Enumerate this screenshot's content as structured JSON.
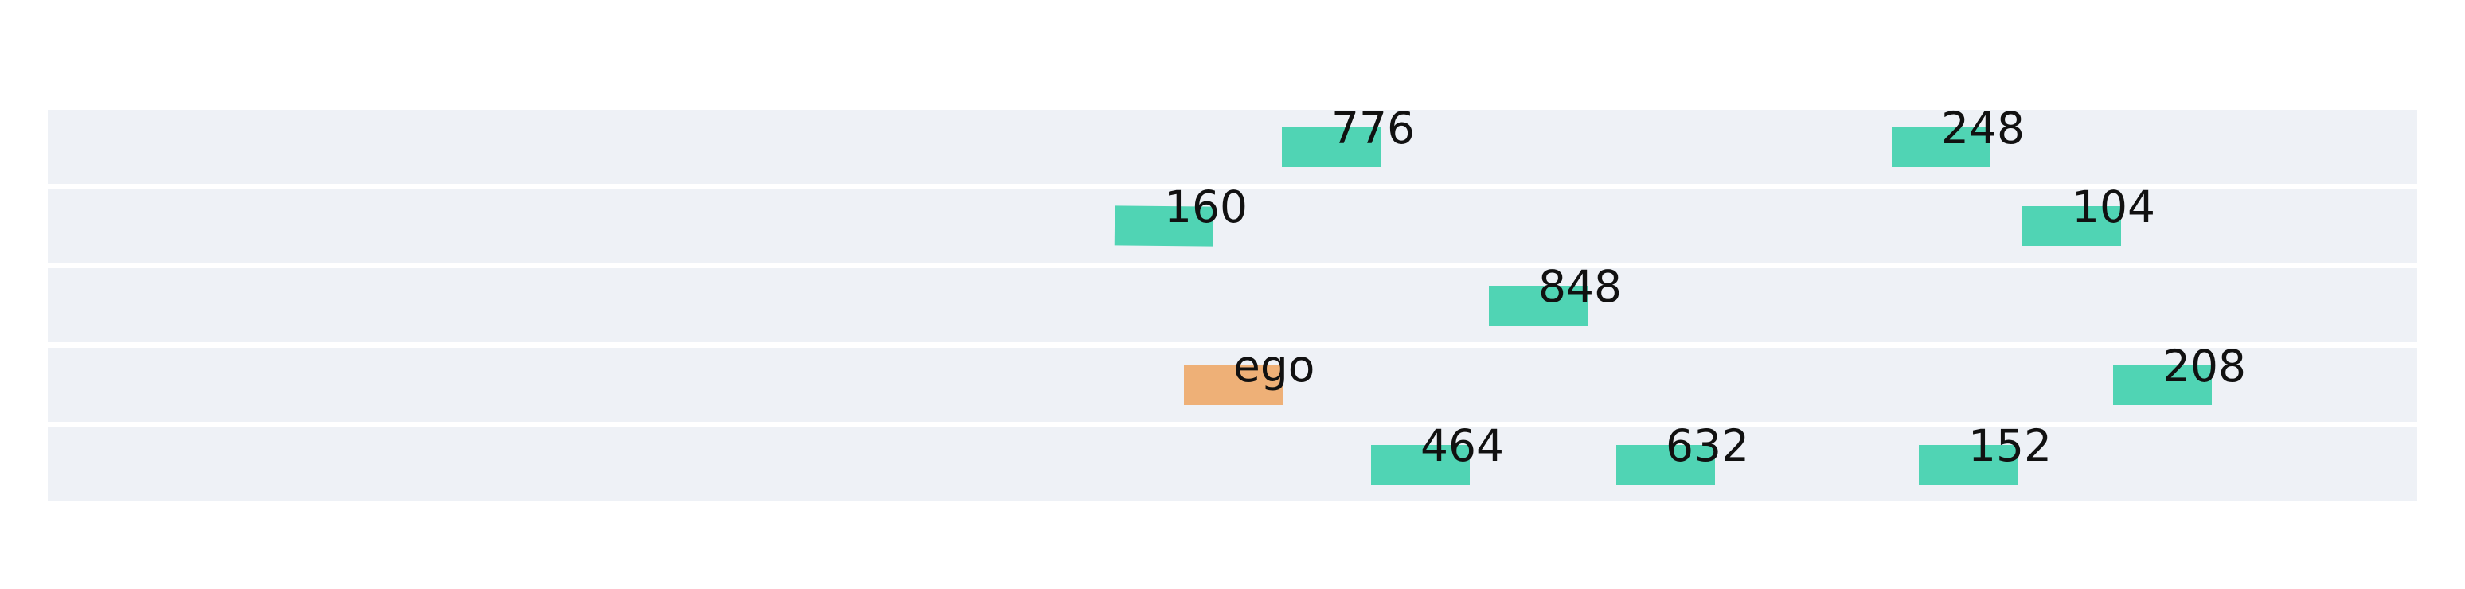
{
  "colors": {
    "background": "#ffffff",
    "lane": "#eef1f6",
    "ego": "#eeb077",
    "other": "#50d4b4",
    "label": "#111111"
  },
  "lanes": [
    {
      "id": 0
    },
    {
      "id": 1
    },
    {
      "id": 2
    },
    {
      "id": 3
    },
    {
      "id": 4
    }
  ],
  "vehicles": [
    {
      "label": "776",
      "lane": 0,
      "type": "other"
    },
    {
      "label": "248",
      "lane": 0,
      "type": "other"
    },
    {
      "label": "160",
      "lane": 1,
      "type": "other"
    },
    {
      "label": "104",
      "lane": 1,
      "type": "other"
    },
    {
      "label": "848",
      "lane": 2,
      "type": "other"
    },
    {
      "label": "ego",
      "lane": 3,
      "type": "ego"
    },
    {
      "label": "208",
      "lane": 3,
      "type": "other"
    },
    {
      "label": "464",
      "lane": 4,
      "type": "other"
    },
    {
      "label": "632",
      "lane": 4,
      "type": "other"
    },
    {
      "label": "152",
      "lane": 4,
      "type": "other"
    }
  ]
}
